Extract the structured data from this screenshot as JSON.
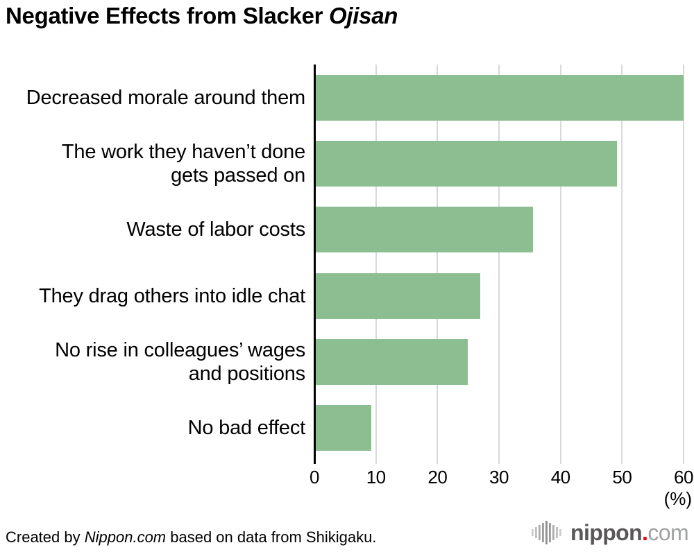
{
  "title": {
    "plain": "Negative Effects from Slacker ",
    "italic": "Ojisan"
  },
  "chart_data": {
    "type": "bar",
    "orientation": "horizontal",
    "title": "Negative Effects from Slacker Ojisan",
    "categories": [
      "Decreased morale around them",
      "The work they haven’t done\ngets passed on",
      "Waste of labor costs",
      "They drag others into idle chat",
      "No rise in colleagues’ wages\nand positions",
      "No bad effect"
    ],
    "values": [
      59.8,
      49,
      35.3,
      26.7,
      24.7,
      9
    ],
    "xlabel": "(%)",
    "xlim": [
      0,
      60
    ],
    "xticks": [
      0,
      10,
      20,
      30,
      40,
      50,
      60
    ],
    "grid": true,
    "legend_position": "none",
    "bar_color": "#8cbe92",
    "grid_color": "#d9d9d9",
    "axis_color": "#000000"
  },
  "footer": {
    "credit": {
      "prefix": "Created by ",
      "italic": "Nippon.com",
      "suffix": " based on data from Shikigaku."
    },
    "logo": {
      "icon": "soundwave-bars-icon",
      "word": "nippon",
      "dot": ".",
      "tld": "com",
      "word_color": "#595757",
      "dot_color": "#e60012",
      "tld_color": "#a0a1a2"
    }
  }
}
